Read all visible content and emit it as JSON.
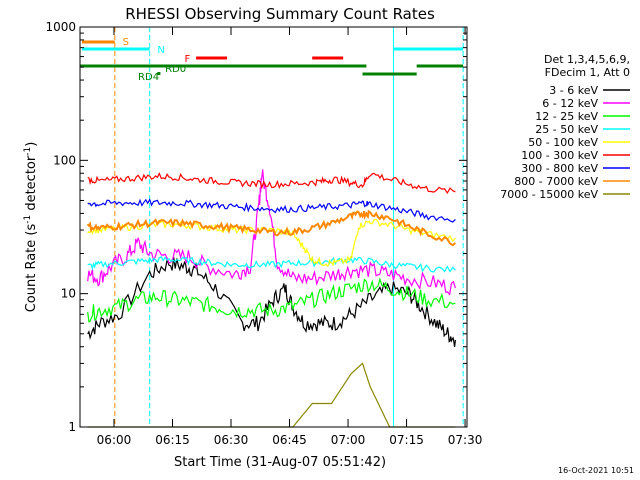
{
  "chart_data": {
    "type": "line",
    "title": "RHESSI Observing Summary Count Rates",
    "xlabel": "Start Time (31-Aug-07 05:51:42)",
    "ylabel_parts": [
      "Count Rate (s",
      "-1",
      " detector",
      "-1",
      ")"
    ],
    "y_scale": "log",
    "ylim": [
      1,
      1000
    ],
    "y_tick_labels": [
      "1",
      "10",
      "100",
      "1000"
    ],
    "x_tick_labels": [
      "06:00",
      "06:15",
      "06:30",
      "06:45",
      "07:00",
      "07:15",
      "07:30"
    ],
    "timestamp": "16-Oct-2021 10:51",
    "legend_header": [
      "Det 1,3,4,5,6,9,",
      "FDecim 1, Att 0"
    ],
    "series": [
      {
        "name": "3 - 6 keV",
        "color": "#000000",
        "points": [
          [
            0,
            0
          ],
          [
            2,
            5
          ],
          [
            5,
            6
          ],
          [
            10,
            7
          ],
          [
            18,
            14
          ],
          [
            23,
            17
          ],
          [
            27,
            16
          ],
          [
            30,
            15
          ],
          [
            35,
            11
          ],
          [
            42,
            6
          ],
          [
            46,
            6
          ],
          [
            50,
            9
          ],
          [
            53,
            11
          ],
          [
            55,
            8
          ],
          [
            58,
            6
          ],
          [
            62,
            6
          ],
          [
            66,
            6
          ],
          [
            70,
            7
          ],
          [
            75,
            9
          ],
          [
            80,
            11
          ],
          [
            85,
            10
          ],
          [
            88,
            8
          ],
          [
            92,
            6
          ],
          [
            95,
            5
          ],
          [
            97,
            4.5
          ]
        ]
      },
      {
        "name": "6 - 12 keV",
        "color": "#ff00ff",
        "points": [
          [
            0,
            0
          ],
          [
            2,
            14
          ],
          [
            5,
            13
          ],
          [
            8,
            16
          ],
          [
            12,
            19
          ],
          [
            15,
            24
          ],
          [
            18,
            20
          ],
          [
            23,
            19
          ],
          [
            28,
            19
          ],
          [
            33,
            16
          ],
          [
            40,
            14
          ],
          [
            44,
            16
          ],
          [
            46,
            40
          ],
          [
            47,
            80
          ],
          [
            49,
            45
          ],
          [
            51,
            17
          ],
          [
            55,
            13
          ],
          [
            60,
            13
          ],
          [
            66,
            14
          ],
          [
            70,
            15
          ],
          [
            75,
            15
          ],
          [
            80,
            14
          ],
          [
            85,
            13
          ],
          [
            92,
            12
          ],
          [
            97,
            11
          ]
        ]
      },
      {
        "name": "12 - 25 keV",
        "color": "#00ff00",
        "points": [
          [
            0,
            0
          ],
          [
            2,
            7
          ],
          [
            5,
            7.5
          ],
          [
            10,
            8
          ],
          [
            15,
            9
          ],
          [
            20,
            9.5
          ],
          [
            25,
            9
          ],
          [
            30,
            8.5
          ],
          [
            35,
            8
          ],
          [
            40,
            7.5
          ],
          [
            45,
            7.5
          ],
          [
            50,
            7.5
          ],
          [
            55,
            8
          ],
          [
            60,
            9
          ],
          [
            65,
            10
          ],
          [
            70,
            11
          ],
          [
            75,
            12
          ],
          [
            80,
            11
          ],
          [
            85,
            10
          ],
          [
            90,
            9
          ],
          [
            97,
            8.5
          ]
        ]
      },
      {
        "name": "25 - 50 keV",
        "color": "#00ffff",
        "points": [
          [
            0,
            0
          ],
          [
            2,
            16
          ],
          [
            5,
            16.5
          ],
          [
            10,
            17
          ],
          [
            15,
            17.5
          ],
          [
            20,
            18
          ],
          [
            25,
            18
          ],
          [
            30,
            17.5
          ],
          [
            35,
            17
          ],
          [
            40,
            16.5
          ],
          [
            45,
            16.5
          ],
          [
            50,
            16.5
          ],
          [
            55,
            17
          ],
          [
            60,
            17
          ],
          [
            65,
            17.5
          ],
          [
            70,
            18
          ],
          [
            75,
            17.5
          ],
          [
            80,
            16.5
          ],
          [
            85,
            16
          ],
          [
            90,
            15.5
          ],
          [
            97,
            15
          ]
        ]
      },
      {
        "name": "50 - 100 keV",
        "color": "#ffff00",
        "points": [
          [
            0,
            0
          ],
          [
            2,
            30
          ],
          [
            5,
            30
          ],
          [
            10,
            31
          ],
          [
            15,
            32
          ],
          [
            20,
            33
          ],
          [
            25,
            33
          ],
          [
            30,
            32
          ],
          [
            35,
            31
          ],
          [
            40,
            30
          ],
          [
            45,
            30
          ],
          [
            50,
            30
          ],
          [
            55,
            28
          ],
          [
            58,
            22
          ],
          [
            60,
            18
          ],
          [
            63,
            17
          ],
          [
            66,
            17
          ],
          [
            70,
            18
          ],
          [
            72,
            32
          ],
          [
            75,
            35
          ],
          [
            80,
            33
          ],
          [
            85,
            30
          ],
          [
            90,
            28
          ],
          [
            97,
            26
          ]
        ]
      },
      {
        "name": "100 - 300 keV",
        "color": "#ff0000",
        "points": [
          [
            0,
            0
          ],
          [
            2,
            72
          ],
          [
            5,
            70
          ],
          [
            10,
            72
          ],
          [
            15,
            74
          ],
          [
            20,
            76
          ],
          [
            25,
            75
          ],
          [
            30,
            72
          ],
          [
            35,
            70
          ],
          [
            40,
            68
          ],
          [
            45,
            67
          ],
          [
            50,
            66
          ],
          [
            55,
            67
          ],
          [
            60,
            68
          ],
          [
            63,
            70
          ],
          [
            66,
            72
          ],
          [
            70,
            68
          ],
          [
            73,
            65
          ],
          [
            75,
            80
          ],
          [
            80,
            72
          ],
          [
            85,
            66
          ],
          [
            90,
            61
          ],
          [
            97,
            58
          ]
        ]
      },
      {
        "name": "300 - 800 keV",
        "color": "#0000ff",
        "points": [
          [
            0,
            0
          ],
          [
            2,
            48
          ],
          [
            5,
            47
          ],
          [
            10,
            48
          ],
          [
            15,
            48
          ],
          [
            20,
            48
          ],
          [
            25,
            48
          ],
          [
            30,
            47
          ],
          [
            35,
            46
          ],
          [
            40,
            45
          ],
          [
            45,
            44
          ],
          [
            50,
            43
          ],
          [
            55,
            43
          ],
          [
            60,
            44
          ],
          [
            65,
            45
          ],
          [
            70,
            46
          ],
          [
            73,
            48
          ],
          [
            75,
            47
          ],
          [
            80,
            44
          ],
          [
            85,
            41
          ],
          [
            90,
            38
          ],
          [
            97,
            36
          ]
        ]
      },
      {
        "name": "800 - 7000 keV",
        "color": "#ff8800",
        "points": [
          [
            0,
            0
          ],
          [
            2,
            32
          ],
          [
            5,
            31
          ],
          [
            10,
            32
          ],
          [
            15,
            33
          ],
          [
            20,
            34
          ],
          [
            25,
            34
          ],
          [
            30,
            33
          ],
          [
            35,
            32
          ],
          [
            40,
            31
          ],
          [
            45,
            30
          ],
          [
            50,
            29
          ],
          [
            55,
            29
          ],
          [
            60,
            31
          ],
          [
            65,
            34
          ],
          [
            70,
            38
          ],
          [
            73,
            40
          ],
          [
            75,
            40
          ],
          [
            80,
            37
          ],
          [
            85,
            32
          ],
          [
            90,
            28
          ],
          [
            97,
            24
          ]
        ]
      },
      {
        "name": "7000 - 15000 keV",
        "color": "#888800",
        "points": [
          [
            0,
            0
          ],
          [
            2,
            1
          ],
          [
            5,
            1
          ],
          [
            10,
            1
          ],
          [
            15,
            1
          ],
          [
            20,
            1
          ],
          [
            25,
            1
          ],
          [
            30,
            1
          ],
          [
            35,
            1
          ],
          [
            40,
            1
          ],
          [
            45,
            1
          ],
          [
            50,
            1
          ],
          [
            55,
            1
          ],
          [
            60,
            1.5
          ],
          [
            65,
            1.5
          ],
          [
            70,
            2.5
          ],
          [
            73,
            3
          ],
          [
            75,
            2
          ],
          [
            80,
            1
          ],
          [
            85,
            1
          ],
          [
            90,
            1
          ],
          [
            97,
            1
          ]
        ]
      }
    ],
    "flags": [
      {
        "label": "S",
        "color": "#ff8800"
      },
      {
        "label": "N",
        "color": "#00ffff"
      },
      {
        "label": "F",
        "color": "#ff0000"
      },
      {
        "label": "RD0",
        "color": "#008000"
      },
      {
        "label": "RD4",
        "color": "#008000"
      }
    ]
  }
}
